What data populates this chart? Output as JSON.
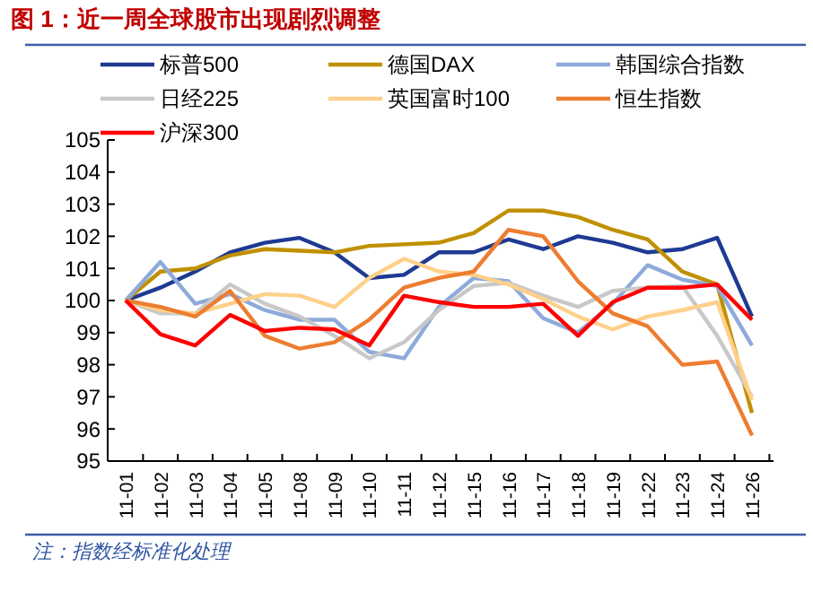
{
  "chart_data": {
    "type": "line",
    "title": "图 1：近一周全球股市出现剧烈调整",
    "categories": [
      "11-01",
      "11-02",
      "11-03",
      "11-04",
      "11-05",
      "11-08",
      "11-09",
      "11-10",
      "11-11",
      "11-12",
      "11-15",
      "11-16",
      "11-17",
      "11-18",
      "11-19",
      "11-22",
      "11-23",
      "11-24",
      "11-26"
    ],
    "series": [
      {
        "name": "标普500",
        "color": "#1f3a93",
        "values": [
          100,
          100.4,
          100.9,
          101.5,
          101.8,
          101.95,
          101.5,
          100.7,
          100.8,
          101.5,
          101.5,
          101.9,
          101.6,
          102,
          101.8,
          101.5,
          101.6,
          101.95,
          99.5
        ]
      },
      {
        "name": "德国DAX",
        "color": "#c09000",
        "values": [
          100,
          100.9,
          101,
          101.4,
          101.6,
          101.55,
          101.5,
          101.7,
          101.75,
          101.8,
          102.1,
          102.8,
          102.8,
          102.6,
          102.2,
          101.9,
          100.9,
          100.5,
          96.5
        ]
      },
      {
        "name": "韩国综合指数",
        "color": "#8eaadb",
        "values": [
          100,
          101.2,
          99.9,
          100.2,
          99.7,
          99.4,
          99.4,
          98.4,
          98.2,
          99.8,
          100.7,
          100.6,
          99.45,
          99,
          99.9,
          101.1,
          100.65,
          100.45,
          98.6
        ]
      },
      {
        "name": "日经225",
        "color": "#c8c8c8",
        "values": [
          100,
          99.6,
          99.6,
          100.5,
          99.9,
          99.5,
          98.9,
          98.2,
          98.7,
          99.7,
          100.45,
          100.55,
          100.15,
          99.8,
          100.3,
          100.4,
          100.45,
          98.9,
          97
        ]
      },
      {
        "name": "英国富时100",
        "color": "#ffd08a",
        "values": [
          100,
          99.7,
          99.6,
          99.9,
          100.2,
          100.15,
          99.8,
          100.7,
          101.3,
          100.9,
          100.8,
          100.5,
          100.05,
          99.5,
          99.1,
          99.5,
          99.7,
          99.95,
          96.9
        ]
      },
      {
        "name": "恒生指数",
        "color": "#ed7d31",
        "values": [
          100,
          99.8,
          99.5,
          100.3,
          98.9,
          98.5,
          98.7,
          99.4,
          100.4,
          100.7,
          100.9,
          102.2,
          102,
          100.6,
          99.6,
          99.2,
          98,
          98.1,
          95.8
        ]
      },
      {
        "name": "沪深300",
        "color": "#ff0000",
        "values": [
          100,
          98.95,
          98.6,
          99.55,
          99.05,
          99.15,
          99.1,
          98.6,
          100.15,
          99.95,
          99.8,
          99.8,
          99.9,
          98.9,
          99.95,
          100.4,
          100.4,
          100.5,
          99.4
        ]
      }
    ],
    "ylim": [
      95,
      105
    ],
    "yticks": [
      95,
      96,
      97,
      98,
      99,
      100,
      101,
      102,
      103,
      104,
      105
    ],
    "legend": "top",
    "grid": false,
    "line_style": "solid",
    "annotations": [
      "注：指数经标准化处理"
    ]
  }
}
